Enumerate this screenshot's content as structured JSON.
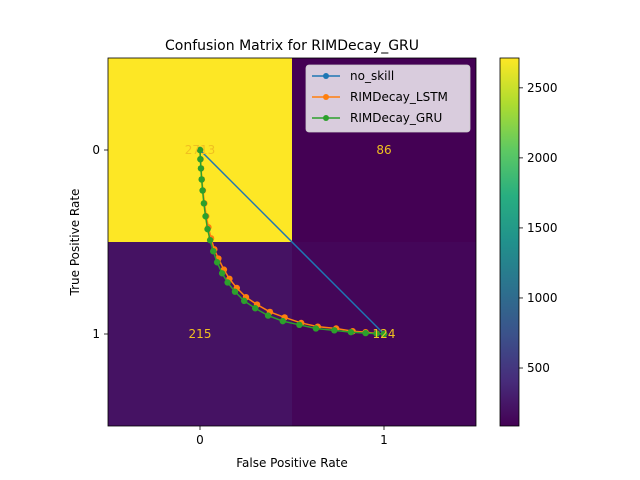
{
  "chart_data": [
    {
      "type": "heatmap",
      "title": "Confusion Matrix for RIMDecay_GRU",
      "xlabel": "False Positive Rate",
      "ylabel": "True Positive Rate",
      "x_ticks": [
        "0",
        "1"
      ],
      "y_ticks": [
        "0",
        "1"
      ],
      "cells": [
        {
          "row": 0,
          "col": 0,
          "value": 2713,
          "label": "2713"
        },
        {
          "row": 0,
          "col": 1,
          "value": 86,
          "label": "86"
        },
        {
          "row": 1,
          "col": 0,
          "value": 215,
          "label": "215"
        },
        {
          "row": 1,
          "col": 1,
          "value": 124,
          "label": "124"
        }
      ],
      "colormap": "viridis",
      "colorbar": {
        "range": [
          86,
          2713
        ],
        "ticks": [
          500,
          1000,
          1500,
          2000,
          2500
        ],
        "tick_labels": [
          "500",
          "1000",
          "1500",
          "2000",
          "2500"
        ]
      },
      "annotation_color": "#f0c020"
    },
    {
      "type": "line",
      "x_range": [
        -0.5,
        1.5
      ],
      "y_range": [
        -0.5,
        1.5
      ],
      "y_inverted": true,
      "legend_position": "top-right",
      "series": [
        {
          "name": "no_skill",
          "color": "#1f77b4",
          "marker_every": 1,
          "x": [
            0,
            1
          ],
          "y": [
            0,
            1
          ]
        },
        {
          "name": "RIMDecay_LSTM",
          "color": "#ff7f0e",
          "marker_every": 1,
          "x": [
            0.0,
            0.003,
            0.006,
            0.01,
            0.016,
            0.024,
            0.034,
            0.046,
            0.06,
            0.078,
            0.1,
            0.13,
            0.16,
            0.2,
            0.25,
            0.31,
            0.38,
            0.46,
            0.55,
            0.64,
            0.74,
            0.83,
            0.9,
            0.96,
            1.0
          ],
          "y": [
            0.0,
            0.05,
            0.1,
            0.16,
            0.22,
            0.29,
            0.36,
            0.42,
            0.48,
            0.54,
            0.59,
            0.65,
            0.7,
            0.75,
            0.8,
            0.84,
            0.88,
            0.91,
            0.94,
            0.96,
            0.97,
            0.985,
            0.99,
            0.997,
            1.0
          ]
        },
        {
          "name": "RIMDecay_GRU",
          "color": "#2ca02c",
          "marker_every": 1,
          "x": [
            0.0,
            0.002,
            0.005,
            0.009,
            0.014,
            0.021,
            0.03,
            0.041,
            0.055,
            0.072,
            0.093,
            0.12,
            0.15,
            0.19,
            0.24,
            0.3,
            0.37,
            0.45,
            0.54,
            0.63,
            0.73,
            0.82,
            0.9,
            0.96,
            1.0
          ],
          "y": [
            0.0,
            0.05,
            0.1,
            0.16,
            0.22,
            0.29,
            0.36,
            0.43,
            0.49,
            0.55,
            0.61,
            0.67,
            0.72,
            0.77,
            0.82,
            0.86,
            0.9,
            0.93,
            0.95,
            0.97,
            0.98,
            0.99,
            0.995,
            0.998,
            1.0
          ]
        }
      ]
    }
  ]
}
